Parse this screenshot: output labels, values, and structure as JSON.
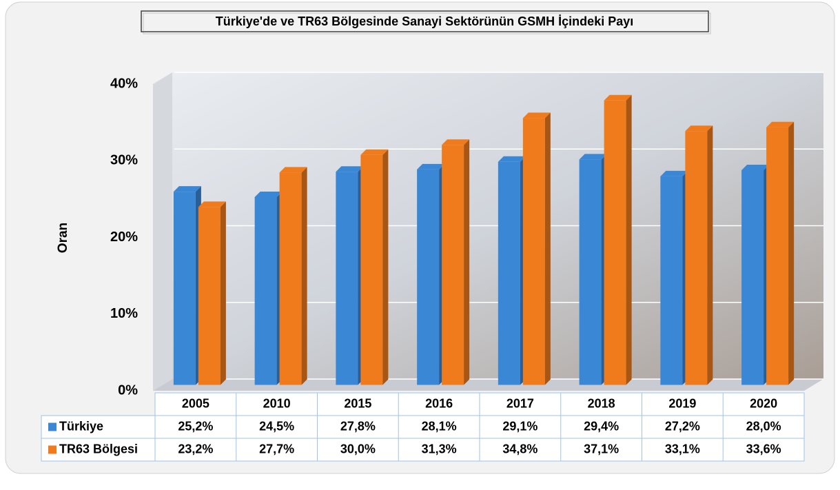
{
  "chart_data": {
    "type": "bar3d",
    "title": "Türkiye'de ve TR63 Bölgesinde Sanayi Sektörünün GSMH İçindeki Payı",
    "y_label": "Oran",
    "categories": [
      "2005",
      "2010",
      "2015",
      "2016",
      "2017",
      "2018",
      "2019",
      "2020"
    ],
    "series": [
      {
        "name": "Türkiye",
        "color": "#3a87d6",
        "values": [
          25.2,
          24.5,
          27.8,
          28.1,
          29.1,
          29.4,
          27.2,
          28.0
        ],
        "value_labels": [
          "25,2%",
          "24,5%",
          "27,8%",
          "28,1%",
          "29,1%",
          "29,4%",
          "27,2%",
          "28,0%"
        ]
      },
      {
        "name": "TR63 Bölgesi",
        "color": "#f07b1c",
        "values": [
          23.2,
          27.7,
          30.0,
          31.3,
          34.8,
          37.1,
          33.1,
          33.6
        ],
        "value_labels": [
          "23,2%",
          "27,7%",
          "30,0%",
          "31,3%",
          "34,8%",
          "37,1%",
          "33,1%",
          "33,6%"
        ]
      }
    ],
    "ylim": [
      0,
      40
    ],
    "yticks": [
      {
        "value": 0,
        "label": "0%"
      },
      {
        "value": 10,
        "label": "10%"
      },
      {
        "value": 20,
        "label": "20%"
      },
      {
        "value": 30,
        "label": "30%"
      },
      {
        "value": 40,
        "label": "40%"
      }
    ],
    "grid": true
  }
}
